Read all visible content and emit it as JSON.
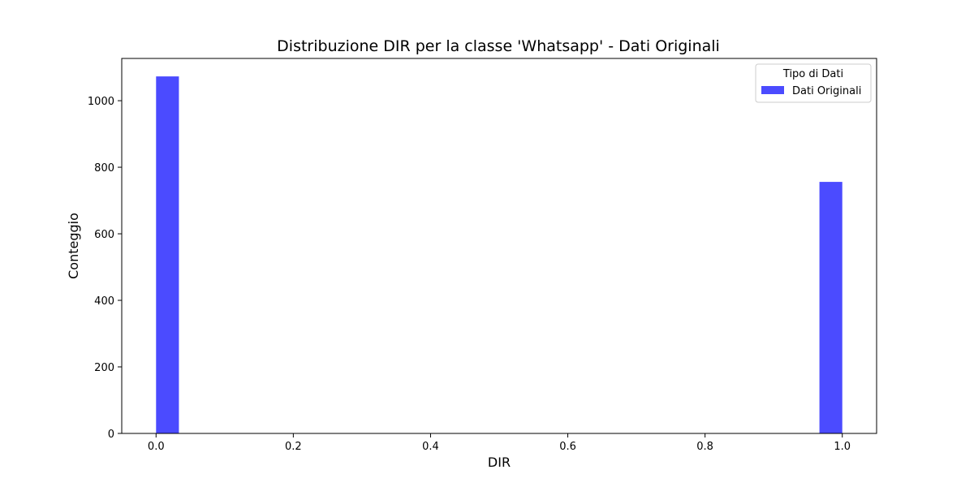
{
  "chart_data": {
    "type": "bar",
    "title": "Distribuzione DIR per la classe 'Whatsapp' - Dati Originali",
    "xlabel": "DIR",
    "ylabel": "Conteggio",
    "xlim": [
      -0.05,
      1.05
    ],
    "ylim": [
      0,
      1127
    ],
    "xticks": [
      0.0,
      0.2,
      0.4,
      0.6,
      0.8,
      1.0
    ],
    "xtick_labels": [
      "0.0",
      "0.2",
      "0.4",
      "0.6",
      "0.8",
      "1.0"
    ],
    "yticks": [
      0,
      200,
      400,
      600,
      800,
      1000
    ],
    "ytick_labels": [
      "0",
      "200",
      "400",
      "600",
      "800",
      "1000"
    ],
    "bin_width": 0.0333,
    "grid": false,
    "legend": {
      "title": "Tipo di Dati",
      "placement": "top-right"
    },
    "series": [
      {
        "name": "Dati Originali",
        "color": "#4b4bff",
        "bins": [
          {
            "x0": 0.0,
            "x1": 0.0333,
            "count": 1073
          },
          {
            "x0": 0.9667,
            "x1": 1.0,
            "count": 756
          }
        ]
      }
    ]
  }
}
